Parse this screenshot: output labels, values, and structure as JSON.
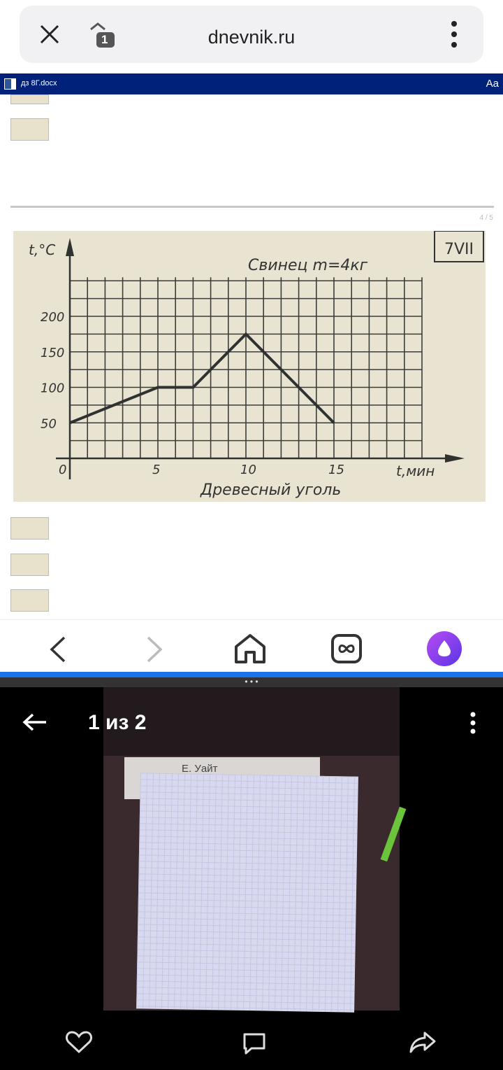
{
  "browser": {
    "url": "dnevnik.ru",
    "tab_count": "1",
    "icons": [
      "close-icon",
      "tabs-icon",
      "more-vertical-icon"
    ]
  },
  "document": {
    "filename": "дз 8Г.docx",
    "font_button": "Aa",
    "page_indicator": "4 / 5"
  },
  "chart_data": {
    "type": "line",
    "title": "Свинец m=4кг",
    "subtitle": "Древесный уголь",
    "badge": "7VII",
    "xlabel": "t,мин",
    "ylabel": "t,°C",
    "x": [
      0,
      5,
      7,
      10,
      15
    ],
    "y": [
      50,
      100,
      100,
      175,
      50
    ],
    "xlim": [
      0,
      20
    ],
    "ylim": [
      0,
      250
    ],
    "xticks": [
      "0",
      "5",
      "10",
      "15"
    ],
    "xtick_values": [
      0,
      5,
      10,
      15
    ],
    "yticks": [
      "50",
      "100",
      "150",
      "200"
    ],
    "ytick_values": [
      50,
      100,
      150,
      200
    ],
    "grid": true,
    "grid_step_x": 1,
    "grid_step_y": 25
  },
  "bottom_nav": {
    "icons": [
      "back-icon",
      "forward-icon",
      "home-icon",
      "tabs-infinity-icon",
      "alice-assistant-icon"
    ]
  },
  "viewer": {
    "counter": "1 из 2",
    "book_author": "Е. Уайт",
    "icons": [
      "arrow-back-icon",
      "more-vertical-icon",
      "heart-icon",
      "comment-icon",
      "share-icon"
    ]
  }
}
